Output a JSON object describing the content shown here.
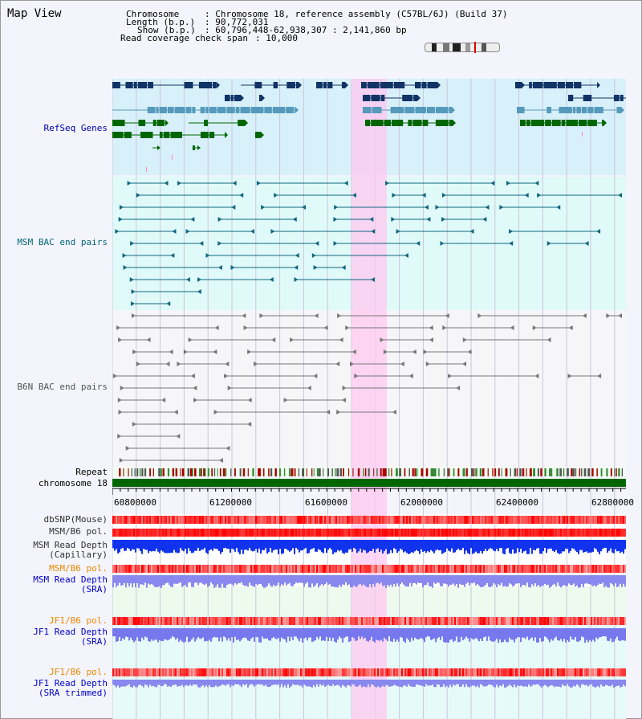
{
  "app_title": "Map View",
  "header": {
    "chromosome_label": "Chromosome",
    "chromosome_value": ": Chromosome 18, reference assembly (C57BL/6J) (Build 37)",
    "length_label": "Length (b.p.)",
    "length_value": ": 90,772,031",
    "show_label": "Show (b.p.)",
    "show_value": ": 60,796,448-62,938,307 : 2,141,860 bp",
    "coverage_label": "Read coverage check span",
    "coverage_value": ": 10,000"
  },
  "tracks": {
    "refseq": "RefSeq Genes",
    "msm_bac": "MSM BAC end pairs",
    "b6n_bac": "B6N BAC end pairs",
    "repeat": "Repeat",
    "chromosome": "chromosome 18",
    "dbsnp": "dbSNP(Mouse)",
    "msm_b6_pol_1": "MSM/B6 pol.",
    "msm_read_depth_cap_1": "MSM Read Depth",
    "msm_read_depth_cap_2": "(Capillary)",
    "msm_b6_pol_2": "MSM/B6 pol.",
    "msm_read_depth_sra_1": "MSM Read Depth",
    "msm_read_depth_sra_2": "(SRA)",
    "jf1_b6_pol_1": "JF1/B6 pol.",
    "jf1_read_depth_sra_1": "JF1 Read Depth",
    "jf1_read_depth_sra_2": "(SRA)",
    "jf1_b6_pol_2": "JF1/B6 pol.",
    "jf1_read_depth_trim_1": "JF1 Read Depth",
    "jf1_read_depth_trim_2": "(SRA trimmed)"
  },
  "axis": {
    "ticks": [
      "60800000",
      "61200000",
      "61600000",
      "62000000",
      "62400000",
      "62800000"
    ]
  },
  "colors": {
    "refseq_label": "#0000aa",
    "msm_label": "#006677",
    "b6n_label": "#555555",
    "orange_label": "#ee8800",
    "blue_label": "#0000cc",
    "highlight": "#ffc8f0",
    "gene_dark": "#113366",
    "gene_light": "#5599bb",
    "gene_green": "#006600",
    "msm_line": "#11667f",
    "b6n_line": "#777777",
    "chrom_bar": "#006600"
  }
}
